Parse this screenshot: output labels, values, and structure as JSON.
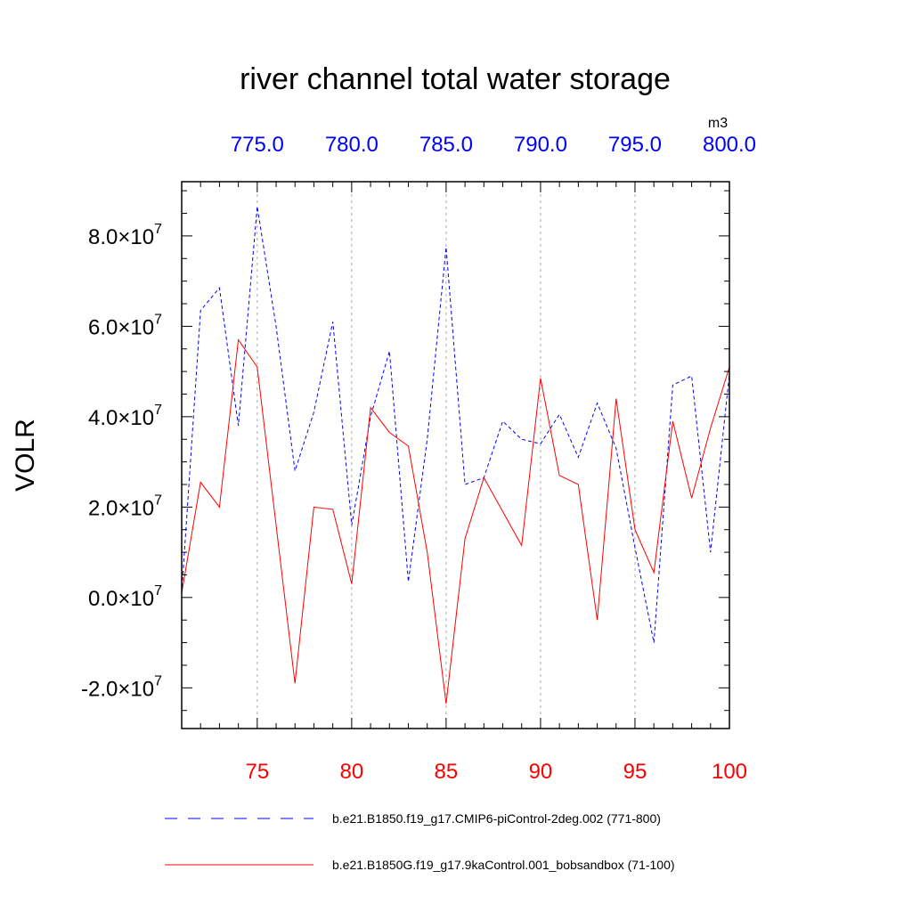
{
  "chart_data": {
    "type": "line",
    "title": "river channel total water storage",
    "ylabel": "VOLR",
    "units": "m3",
    "ylim": [
      -29000000,
      92000000
    ],
    "y_ticks": [
      {
        "value": -20000000,
        "mantissa": "-2.0",
        "times": "×",
        "base": "10",
        "exp": "7"
      },
      {
        "value": 0,
        "mantissa": "0.0",
        "times": "×",
        "base": "10",
        "exp": "7"
      },
      {
        "value": 20000000,
        "mantissa": "2.0",
        "times": "×",
        "base": "10",
        "exp": "7"
      },
      {
        "value": 40000000,
        "mantissa": "4.0",
        "times": "×",
        "base": "10",
        "exp": "7"
      },
      {
        "value": 60000000,
        "mantissa": "6.0",
        "times": "×",
        "base": "10",
        "exp": "7"
      },
      {
        "value": 80000000,
        "mantissa": "8.0",
        "times": "×",
        "base": "10",
        "exp": "7"
      }
    ],
    "x_bottom": {
      "range": [
        71,
        100
      ],
      "ticks": [
        75,
        80,
        85,
        90,
        95,
        100
      ],
      "labels": [
        "75",
        "80",
        "85",
        "90",
        "95",
        "100"
      ],
      "color": "#ff0000"
    },
    "x_top": {
      "range": [
        771,
        800
      ],
      "ticks": [
        775,
        780,
        785,
        790,
        795,
        800
      ],
      "labels": [
        "775.0",
        "780.0",
        "785.0",
        "790.0",
        "795.0",
        "800.0"
      ],
      "color": "#0000ff"
    },
    "grid": "dashed vertical at major x ticks",
    "legend_position": "bottom",
    "series": [
      {
        "name": "b.e21.B1850.f19_g17.CMIP6-piControl-2deg.002 (771-800)",
        "color": "#0000ff",
        "style": "dashed",
        "axis": "top",
        "x": [
          771,
          772,
          773,
          774,
          775,
          776,
          777,
          778,
          779,
          780,
          781,
          782,
          783,
          784,
          785,
          786,
          787,
          788,
          789,
          790,
          791,
          792,
          793,
          794,
          795,
          796,
          797,
          798,
          799,
          800
        ],
        "values": [
          1000000,
          63500000,
          68500000,
          38000000,
          86500000,
          60000000,
          28000000,
          41000000,
          61000000,
          16000000,
          40000000,
          54500000,
          3500000,
          35000000,
          77500000,
          25000000,
          26500000,
          39000000,
          35000000,
          34000000,
          40500000,
          31000000,
          43000000,
          33000000,
          11000000,
          -10000000,
          47000000,
          49000000,
          10000000,
          49500000
        ]
      },
      {
        "name": "b.e21.B1850G.f19_g17.9kaControl.001_bobsandbox (71-100)",
        "color": "#ff0000",
        "style": "solid",
        "axis": "bottom",
        "x": [
          71,
          72,
          73,
          74,
          75,
          76,
          77,
          78,
          79,
          80,
          81,
          82,
          83,
          84,
          85,
          86,
          87,
          88,
          89,
          90,
          91,
          92,
          93,
          94,
          95,
          96,
          97,
          98,
          99,
          100
        ],
        "values": [
          1000000,
          25500000,
          20000000,
          57000000,
          51000000,
          16000000,
          -19000000,
          20000000,
          19500000,
          3000000,
          42000000,
          36500000,
          33500000,
          10000000,
          -23500000,
          13000000,
          26500000,
          19000000,
          11500000,
          48500000,
          27000000,
          25000000,
          -5000000,
          44000000,
          15000000,
          5500000,
          39000000,
          22000000,
          37500000,
          51000000
        ]
      }
    ]
  }
}
